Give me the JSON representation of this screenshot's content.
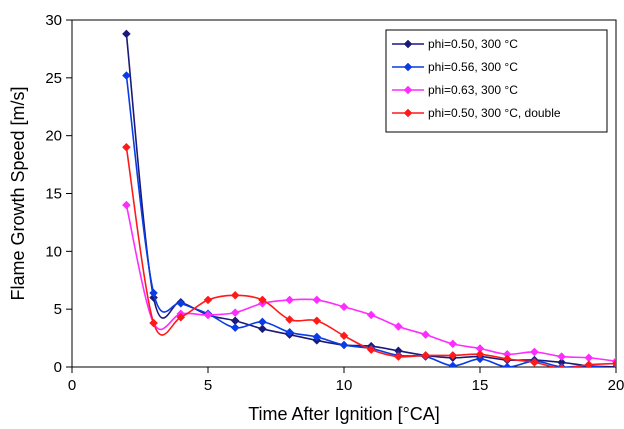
{
  "chart_data": {
    "type": "line",
    "title": "",
    "xlabel": "Time After Ignition [°CA]",
    "ylabel": "Flame Growth Speed [m/s]",
    "xlim": [
      0,
      20
    ],
    "ylim": [
      0,
      30
    ],
    "xticks": [
      0,
      5,
      10,
      15,
      20
    ],
    "yticks": [
      0,
      5,
      10,
      15,
      20,
      25,
      30
    ],
    "grid": false,
    "legend_position": "top-right",
    "series": [
      {
        "name": "phi=0.50, 300 °C",
        "color": "#1a1a7a",
        "x": [
          2,
          3,
          4,
          5,
          6,
          7,
          8,
          9,
          10,
          11,
          12,
          13,
          14,
          15,
          16,
          17,
          18,
          19,
          20
        ],
        "y": [
          28.8,
          6.0,
          5.6,
          4.5,
          4.0,
          3.3,
          2.8,
          2.3,
          1.9,
          1.8,
          1.4,
          1.0,
          0.8,
          0.9,
          0.6,
          0.6,
          0.4,
          0.1,
          0.0
        ]
      },
      {
        "name": "phi=0.56, 300 °C",
        "color": "#0a3ce6",
        "x": [
          2,
          3,
          4,
          5,
          6,
          7,
          8,
          9,
          10,
          11,
          12,
          13,
          14,
          15,
          16,
          17,
          18,
          19,
          20
        ],
        "y": [
          25.2,
          6.4,
          5.5,
          4.6,
          3.4,
          3.9,
          3.0,
          2.6,
          1.9,
          1.6,
          1.0,
          0.9,
          0.1,
          0.7,
          0.0,
          0.5,
          0.0,
          0.1,
          -0.2
        ]
      },
      {
        "name": "phi=0.63, 300 °C",
        "color": "#ff2cff",
        "x": [
          2,
          3,
          4,
          5,
          6,
          7,
          8,
          9,
          10,
          11,
          12,
          13,
          14,
          15,
          16,
          17,
          18,
          19,
          20
        ],
        "y": [
          14.0,
          3.8,
          4.6,
          4.5,
          4.7,
          5.5,
          5.8,
          5.8,
          5.2,
          4.5,
          3.5,
          2.8,
          2.0,
          1.6,
          1.1,
          1.3,
          0.9,
          0.8,
          0.5
        ]
      },
      {
        "name": "phi=0.50, 300 °C, double",
        "color": "#ff1a1a",
        "x": [
          2,
          3,
          4,
          5,
          6,
          7,
          8,
          9,
          10,
          11,
          12,
          13,
          14,
          15,
          16,
          17,
          18,
          19,
          20
        ],
        "y": [
          19.0,
          3.8,
          4.3,
          5.8,
          6.2,
          5.8,
          4.1,
          4.0,
          2.7,
          1.5,
          0.9,
          1.0,
          1.0,
          1.1,
          0.7,
          0.4,
          -0.1,
          0.2,
          0.3
        ]
      }
    ]
  }
}
